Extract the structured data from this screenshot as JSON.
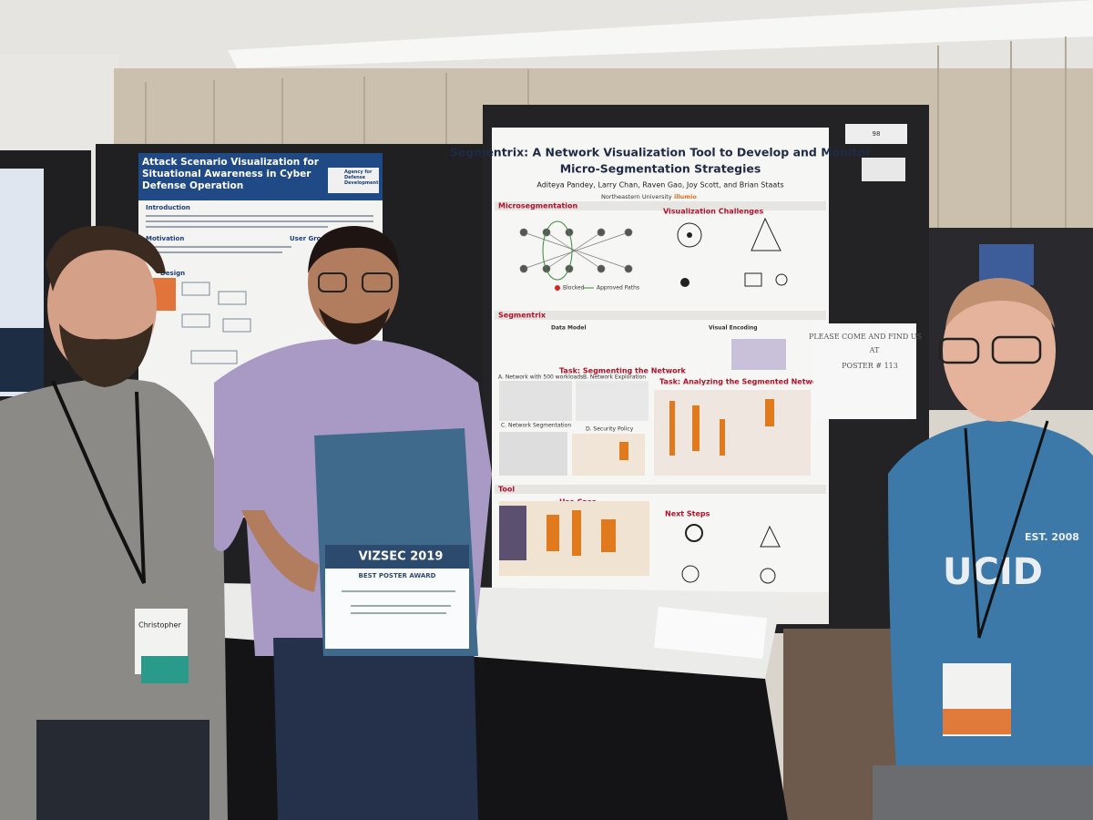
{
  "scene": {
    "left_poster": {
      "title": "Attack Scenario Visualization for Situational Awareness in Cyber Defense Operation",
      "agency": "Agency for Defense Development",
      "sections": [
        "Introduction",
        "Motivation",
        "User Groups",
        "Design"
      ]
    },
    "main_poster": {
      "number": "98",
      "title_line1": "Segmentrix: A Network Visualization Tool to Develop and Monitor",
      "title_line2": "Micro-Segmentation Strategies",
      "authors": "Aditeya Pandey, Larry Chan, Raven Gao, Joy Scott, and Brian Staats",
      "affiliations": [
        "Northeastern University",
        "illumio"
      ],
      "sections": [
        "Microsegmentation",
        "Visualization Challenges",
        "Segmentrix",
        "Data Model",
        "Visual Encoding",
        "Task: Segmenting the Network",
        "A. Network with 500 workloads",
        "B. Network Exploration",
        "C. Network Segmentation",
        "D. Security Policy",
        "Task: Analyzing the Segmented Network",
        "Tool",
        "Use Case",
        "Next Steps"
      ],
      "legend": [
        "Blocked",
        "Approved Paths"
      ]
    },
    "note": [
      "PLEASE COME AND FIND US",
      "AT",
      "POSTER # 113"
    ],
    "award": {
      "event": "VIZSEC 2019",
      "title": "BEST POSTER AWARD"
    },
    "badge": "Christopher",
    "shirt": [
      "UCID",
      "EST. 2008"
    ]
  }
}
